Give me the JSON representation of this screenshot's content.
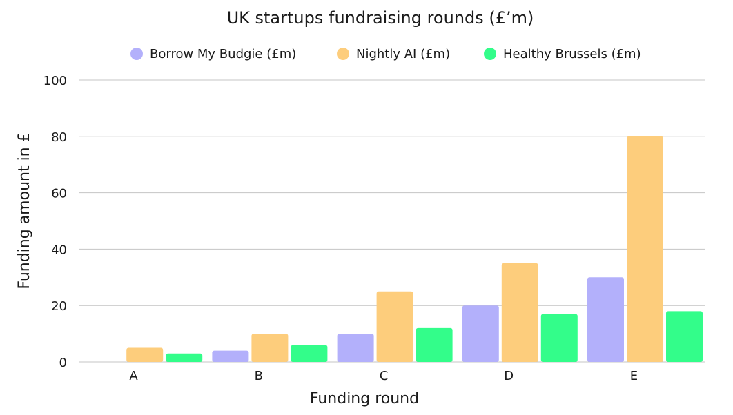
{
  "chart_data": {
    "type": "bar",
    "title": "UK startups fundraising rounds (£’m)",
    "xlabel": "Funding round",
    "ylabel": "Funding amount in £",
    "categories": [
      "A",
      "B",
      "C",
      "D",
      "E"
    ],
    "series": [
      {
        "name": "Borrow My Budgie (£m)",
        "values": [
          0,
          4,
          10,
          20,
          30
        ],
        "color": "#b3b0fb"
      },
      {
        "name": "Nightly AI (£m)",
        "values": [
          5,
          10,
          25,
          35,
          80
        ],
        "color": "#fdcd7c"
      },
      {
        "name": "Healthy Brussels (£m)",
        "values": [
          3,
          6,
          12,
          17,
          18
        ],
        "color": "#33fd8a"
      }
    ],
    "ylim": [
      0,
      100
    ],
    "yticks": [
      0,
      20,
      40,
      60,
      80,
      100
    ],
    "grid": true,
    "legend_position": "top"
  }
}
